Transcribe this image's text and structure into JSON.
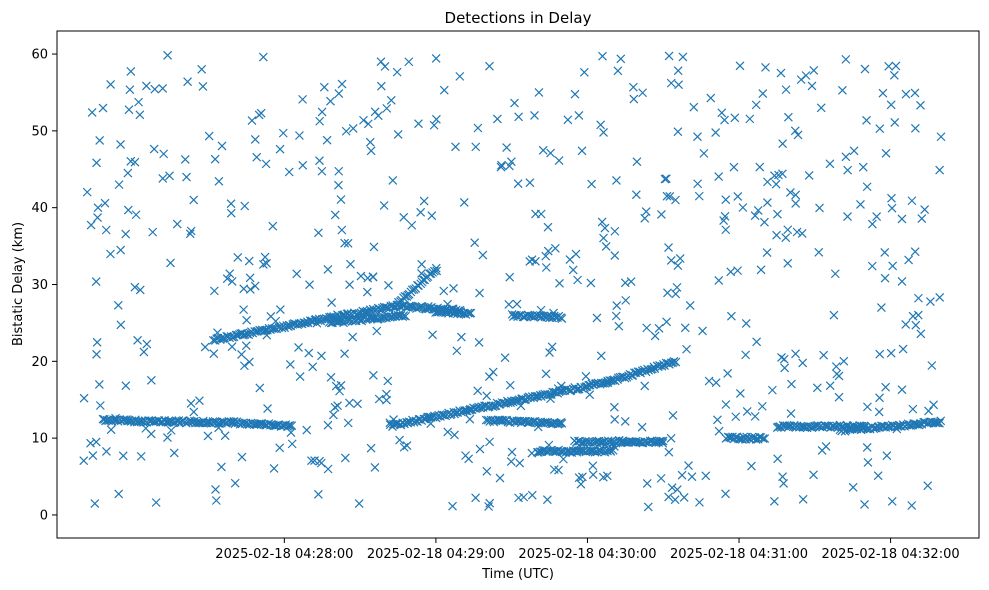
{
  "chart_data": {
    "type": "scatter",
    "title": "Detections in Delay",
    "xlabel": "Time (UTC)",
    "ylabel": "Bistatic Delay (km)",
    "marker": "x",
    "color": "#1f77b4",
    "grid": false,
    "legend": "none",
    "xlim": [
      "2025-02-18 04:26:30",
      "2025-02-18 04:32:35"
    ],
    "ylim": [
      -3,
      63
    ],
    "x_ticks": [
      "2025-02-18 04:28:00",
      "2025-02-18 04:29:00",
      "2025-02-18 04:30:00",
      "2025-02-18 04:31:00",
      "2025-02-18 04:32:00"
    ],
    "y_ticks": [
      0,
      10,
      20,
      30,
      40,
      50,
      60
    ],
    "tracks": [
      {
        "x_start": "2025-02-18 04:27:32",
        "x_end": "2025-02-18 04:28:44",
        "y_start": 22.8,
        "y_end": 27.2
      },
      {
        "x_start": "2025-02-18 04:28:44",
        "x_end": "2025-02-18 04:29:00",
        "y_start": 27.2,
        "y_end": 32.0
      },
      {
        "x_start": "2025-02-18 04:28:45",
        "x_end": "2025-02-18 04:29:10",
        "y_start": 27.2,
        "y_end": 26.6
      },
      {
        "x_start": "2025-02-18 04:29:00",
        "x_end": "2025-02-18 04:29:14",
        "y_start": 26.5,
        "y_end": 26.2
      },
      {
        "x_start": "2025-02-18 04:29:30",
        "x_end": "2025-02-18 04:29:50",
        "y_start": 26.0,
        "y_end": 25.7
      },
      {
        "x_start": "2025-02-18 04:26:48",
        "x_end": "2025-02-18 04:27:40",
        "y_start": 12.3,
        "y_end": 12.0
      },
      {
        "x_start": "2025-02-18 04:27:40",
        "x_end": "2025-02-18 04:28:03",
        "y_start": 12.0,
        "y_end": 11.6
      },
      {
        "x_start": "2025-02-18 04:28:18",
        "x_end": "2025-02-18 04:28:48",
        "y_start": 25.0,
        "y_end": 26.0
      },
      {
        "x_start": "2025-02-18 04:28:42",
        "x_end": "2025-02-18 04:30:08",
        "y_start": 11.6,
        "y_end": 17.3
      },
      {
        "x_start": "2025-02-18 04:30:08",
        "x_end": "2025-02-18 04:30:35",
        "y_start": 17.3,
        "y_end": 20.0
      },
      {
        "x_start": "2025-02-18 04:29:20",
        "x_end": "2025-02-18 04:29:50",
        "y_start": 12.3,
        "y_end": 11.9
      },
      {
        "x_start": "2025-02-18 04:29:40",
        "x_end": "2025-02-18 04:30:10",
        "y_start": 8.3,
        "y_end": 8.3
      },
      {
        "x_start": "2025-02-18 04:29:55",
        "x_end": "2025-02-18 04:30:30",
        "y_start": 9.5,
        "y_end": 9.5
      },
      {
        "x_start": "2025-02-18 04:30:55",
        "x_end": "2025-02-18 04:31:10",
        "y_start": 10.0,
        "y_end": 10.0
      },
      {
        "x_start": "2025-02-18 04:31:15",
        "x_end": "2025-02-18 04:31:50",
        "y_start": 11.5,
        "y_end": 11.5
      },
      {
        "x_start": "2025-02-18 04:31:40",
        "x_end": "2025-02-18 04:32:20",
        "y_start": 11.0,
        "y_end": 12.1
      }
    ],
    "scatter_time_range": [
      "2025-02-18 04:26:40",
      "2025-02-18 04:32:20"
    ],
    "scatter_delay_range": [
      1,
      60
    ]
  }
}
